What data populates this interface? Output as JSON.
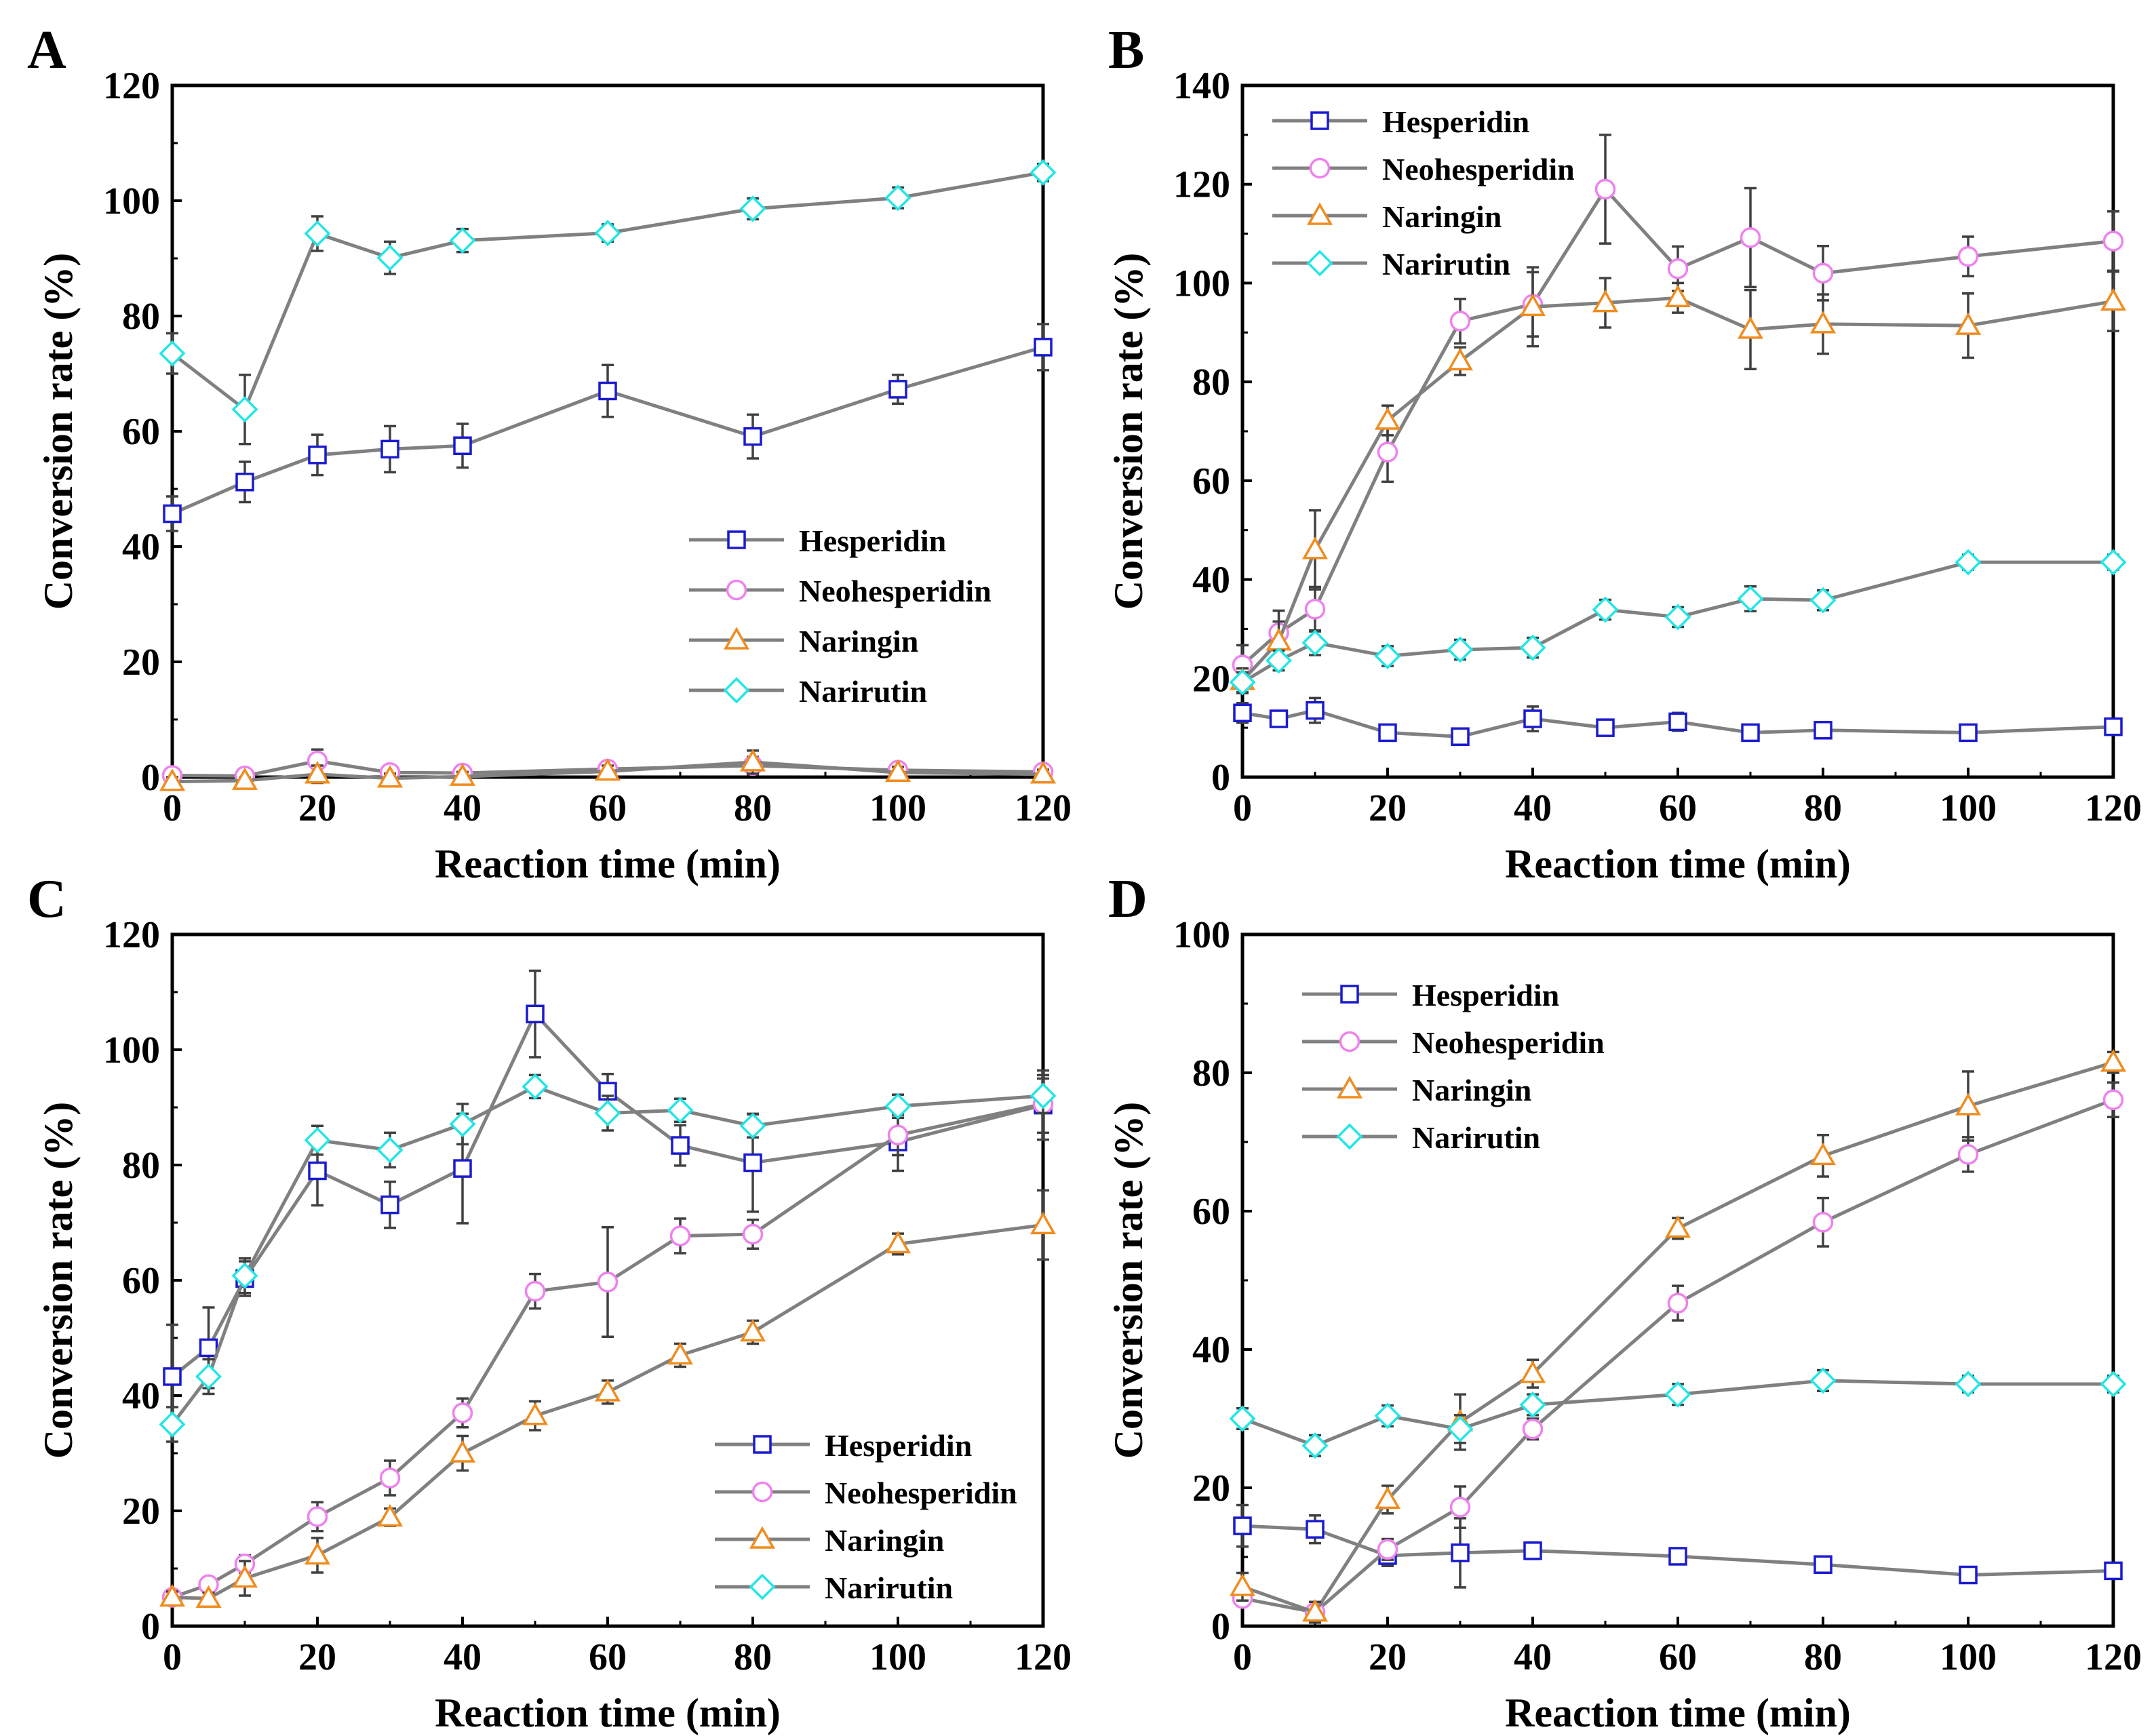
{
  "figure": {
    "series_names": [
      "Hesperidin",
      "Neohesperidin",
      "Naringin",
      "Narirutin"
    ],
    "colors": {
      "line": "#808080",
      "axis": "#000000",
      "error_bar": "#404040",
      "Hesperidin": "#1a1ad0",
      "Neohesperidin": "#ee82ee",
      "Naringin": "#f08c1e",
      "Narirutin": "#22e6e6"
    },
    "markers": {
      "Hesperidin": "square",
      "Neohesperidin": "circle",
      "Naringin": "triangle",
      "Narirutin": "diamond"
    }
  },
  "chart_data": [
    {
      "panel": "A",
      "type": "line",
      "xlabel": "Reaction time (min)",
      "ylabel": "Conversion rate (%)",
      "xlim": [
        0,
        120
      ],
      "ylim": [
        0,
        120
      ],
      "xticks": [
        0,
        20,
        40,
        60,
        80,
        100,
        120
      ],
      "yticks": [
        0,
        20,
        40,
        60,
        80,
        100,
        120
      ],
      "legend_position": "center-right",
      "series": [
        {
          "name": "Hesperidin",
          "x": [
            0,
            10,
            20,
            30,
            40,
            60,
            80,
            100,
            120
          ],
          "values": [
            45.7,
            51.2,
            55.9,
            56.9,
            57.5,
            67.0,
            59.1,
            67.3,
            74.6
          ],
          "errors": [
            3,
            3.5,
            3.5,
            4,
            3.8,
            4.5,
            3.8,
            2.5,
            4
          ]
        },
        {
          "name": "Neohesperidin",
          "x": [
            0,
            10,
            20,
            30,
            40,
            60,
            80,
            100,
            120
          ],
          "values": [
            0.3,
            0.2,
            2.8,
            0.8,
            0.7,
            1.4,
            2.0,
            1.2,
            0.9
          ],
          "errors": [
            0.5,
            0.5,
            2,
            0.8,
            0.8,
            1,
            1.5,
            1,
            0.8
          ]
        },
        {
          "name": "Naringin",
          "x": [
            0,
            10,
            20,
            30,
            40,
            60,
            80,
            100,
            120
          ],
          "values": [
            -0.8,
            -0.6,
            0.5,
            -0.2,
            0.1,
            1.0,
            2.6,
            0.8,
            0.5
          ],
          "errors": [
            0.8,
            0.5,
            1.5,
            0.8,
            0.8,
            1,
            2,
            1,
            0.8
          ]
        },
        {
          "name": "Narirutin",
          "x": [
            0,
            10,
            20,
            30,
            40,
            60,
            80,
            100,
            120
          ],
          "values": [
            73.5,
            63.8,
            94.3,
            90.1,
            93.1,
            94.4,
            98.6,
            100.5,
            104.9
          ],
          "errors": [
            3.5,
            6,
            3,
            2.8,
            2,
            1.5,
            1.8,
            1.8,
            1.5
          ]
        }
      ]
    },
    {
      "panel": "B",
      "type": "line",
      "xlabel": "Reaction time (min)",
      "ylabel": "Conversion rate (%)",
      "xlim": [
        0,
        120
      ],
      "ylim": [
        0,
        140
      ],
      "xticks": [
        0,
        20,
        40,
        60,
        80,
        100,
        120
      ],
      "yticks": [
        0,
        20,
        40,
        60,
        80,
        100,
        120,
        140
      ],
      "legend_position": "top-left",
      "series": [
        {
          "name": "Hesperidin",
          "x": [
            0,
            5,
            10,
            20,
            30,
            40,
            50,
            60,
            70,
            80,
            100,
            120
          ],
          "values": [
            13.0,
            11.8,
            13.5,
            9.0,
            8.2,
            11.8,
            10.0,
            11.2,
            9.0,
            9.5,
            9.0,
            10.2
          ],
          "errors": [
            2,
            1.5,
            2.5,
            1.5,
            1.5,
            2.5,
            1.5,
            1.8,
            1.5,
            1.5,
            1.5,
            1.5
          ]
        },
        {
          "name": "Neohesperidin",
          "x": [
            0,
            5,
            10,
            20,
            30,
            40,
            50,
            60,
            70,
            80,
            100,
            120
          ],
          "values": [
            22.7,
            29.2,
            34.0,
            65.8,
            92.3,
            95.7,
            119.0,
            102.9,
            109.2,
            102.0,
            105.4,
            108.5
          ],
          "errors": [
            4,
            4.5,
            4.5,
            6,
            4.5,
            6.5,
            11,
            4.5,
            10,
            5.5,
            4,
            6
          ]
        },
        {
          "name": "Naringin",
          "x": [
            0,
            5,
            10,
            20,
            30,
            40,
            50,
            60,
            70,
            80,
            100,
            120
          ],
          "values": [
            19.5,
            27.5,
            46.0,
            72.2,
            84.2,
            95.2,
            96.0,
            97.0,
            90.6,
            91.7,
            91.4,
            96.3
          ],
          "errors": [
            2.5,
            4,
            8,
            3,
            2.8,
            8,
            5,
            3,
            8,
            6,
            6.5,
            6
          ]
        },
        {
          "name": "Narirutin",
          "x": [
            0,
            5,
            10,
            20,
            30,
            40,
            50,
            60,
            70,
            80,
            100,
            120
          ],
          "values": [
            19.2,
            23.6,
            27.2,
            24.5,
            25.8,
            26.2,
            33.9,
            32.4,
            36.1,
            35.8,
            43.5,
            43.5
          ],
          "errors": [
            2,
            2,
            2.5,
            2,
            2,
            2,
            2,
            2,
            2.5,
            2,
            1.5,
            1.5
          ]
        }
      ]
    },
    {
      "panel": "C",
      "type": "line",
      "xlabel": "Reaction time (min)",
      "ylabel": "Conversion rate (%)",
      "xlim": [
        0,
        120
      ],
      "ylim": [
        0,
        120
      ],
      "xticks": [
        0,
        20,
        40,
        60,
        80,
        100,
        120
      ],
      "yticks": [
        0,
        20,
        40,
        60,
        80,
        100,
        120
      ],
      "legend_position": "bottom-right",
      "series": [
        {
          "name": "Hesperidin",
          "x": [
            0,
            5,
            10,
            20,
            30,
            40,
            50,
            60,
            70,
            80,
            100,
            120
          ],
          "values": [
            43.3,
            48.3,
            60.3,
            79.0,
            73.1,
            79.4,
            106.2,
            92.8,
            83.4,
            80.4,
            84.0,
            90.4
          ],
          "errors": [
            9,
            7,
            3,
            6,
            4,
            9.5,
            7.5,
            3,
            3.5,
            8.5,
            5,
            6
          ]
        },
        {
          "name": "Neohesperidin",
          "x": [
            0,
            5,
            10,
            20,
            30,
            40,
            50,
            60,
            70,
            80,
            100,
            120
          ],
          "values": [
            5.0,
            7.2,
            10.8,
            19.0,
            25.7,
            37.0,
            58.1,
            59.7,
            67.7,
            68.0,
            85.2,
            90.6
          ],
          "errors": [
            1,
            1.2,
            1.5,
            2.5,
            3,
            2.5,
            3,
            9.5,
            3,
            2.5,
            3.5,
            5
          ]
        },
        {
          "name": "Naringin",
          "x": [
            0,
            5,
            10,
            20,
            30,
            40,
            50,
            60,
            70,
            80,
            100,
            120
          ],
          "values": [
            5.0,
            4.8,
            8.3,
            12.3,
            18.9,
            30.0,
            36.5,
            40.6,
            47.0,
            51.0,
            66.3,
            69.6
          ],
          "errors": [
            1,
            1,
            3,
            3,
            1.5,
            3,
            2.5,
            2,
            2,
            2,
            1.8,
            6
          ]
        },
        {
          "name": "Narirutin",
          "x": [
            0,
            5,
            10,
            20,
            30,
            40,
            50,
            60,
            70,
            80,
            100,
            120
          ],
          "values": [
            35.0,
            43.3,
            60.8,
            84.3,
            82.6,
            87.1,
            93.6,
            89.0,
            89.5,
            86.8,
            90.2,
            92.0
          ],
          "errors": [
            3,
            3,
            3,
            2.5,
            3,
            3.5,
            2,
            3,
            2,
            2,
            2,
            3
          ]
        }
      ]
    },
    {
      "panel": "D",
      "type": "line",
      "xlabel": "Reaction time (min)",
      "ylabel": "Conversion rate (%)",
      "xlim": [
        0,
        120
      ],
      "ylim": [
        0,
        100
      ],
      "xticks": [
        0,
        20,
        40,
        60,
        80,
        100,
        120
      ],
      "yticks": [
        0,
        20,
        40,
        60,
        80,
        100
      ],
      "legend_position": "top-left",
      "series": [
        {
          "name": "Hesperidin",
          "x": [
            0,
            10,
            20,
            30,
            40,
            60,
            80,
            100,
            120
          ],
          "values": [
            14.5,
            14.0,
            10.2,
            10.6,
            10.9,
            10.1,
            8.9,
            7.4,
            8.0
          ],
          "errors": [
            3,
            2,
            1.5,
            5,
            1.2,
            1,
            1,
            1,
            1
          ]
        },
        {
          "name": "Neohesperidin",
          "x": [
            0,
            10,
            20,
            30,
            40,
            60,
            80,
            100,
            120
          ],
          "values": [
            4.0,
            2.0,
            11.1,
            17.2,
            28.5,
            46.7,
            58.4,
            68.2,
            76.1
          ],
          "errors": [
            1,
            1,
            1.5,
            3,
            1.5,
            2.5,
            3.5,
            2.5,
            2.5
          ]
        },
        {
          "name": "Naringin",
          "x": [
            0,
            10,
            20,
            30,
            40,
            60,
            80,
            100,
            120
          ],
          "values": [
            5.7,
            2.0,
            18.3,
            29.5,
            36.5,
            57.5,
            68.0,
            75.2,
            81.5
          ],
          "errors": [
            2,
            1.5,
            2,
            4,
            2,
            1.5,
            3,
            5,
            1.5
          ]
        },
        {
          "name": "Narirutin",
          "x": [
            0,
            10,
            20,
            30,
            40,
            60,
            80,
            100,
            120
          ],
          "values": [
            30.0,
            26.1,
            30.4,
            28.5,
            32.0,
            33.5,
            35.5,
            35.0,
            35.0
          ],
          "errors": [
            1.5,
            1.5,
            1.5,
            2,
            1.5,
            1.5,
            1.5,
            1.2,
            1.2
          ]
        }
      ]
    }
  ]
}
